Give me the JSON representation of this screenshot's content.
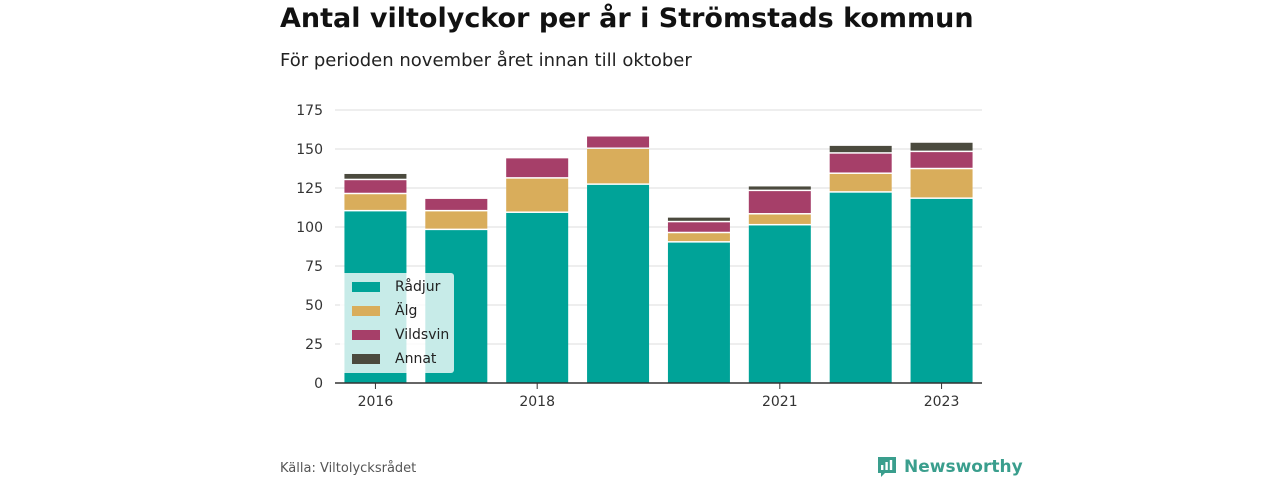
{
  "title": "Antal viltolyckor per år i Strömstads kommun",
  "subtitle": "För perioden november året innan till oktober",
  "source": "Källa: Viltolycksrådet",
  "brand": "Newsworthy",
  "colors": {
    "radjur": "#00a398",
    "alg": "#d9ad5b",
    "vildsvin": "#a63f69",
    "annat": "#4b4a3e",
    "grid": "#dddddd",
    "axis": "#333333",
    "brand": "#3a9e8d"
  },
  "chart_data": {
    "type": "bar",
    "stacked": true,
    "categories": [
      "2016",
      "2017",
      "2018",
      "2019",
      "2020",
      "2021",
      "2022",
      "2023"
    ],
    "tick_labels": [
      "2016",
      "2018",
      "2021",
      "2023"
    ],
    "y_ticks": [
      0,
      25,
      50,
      75,
      100,
      125,
      150,
      175
    ],
    "ylim": [
      0,
      175
    ],
    "legend_position": "bottom-left",
    "grid": true,
    "series": [
      {
        "name": "Rådjur",
        "color": "#00a398",
        "values": [
          110,
          98,
          109,
          127,
          90,
          101,
          122,
          118
        ]
      },
      {
        "name": "Älg",
        "color": "#d9ad5b",
        "values": [
          11,
          12,
          22,
          23,
          6,
          7,
          12,
          19
        ]
      },
      {
        "name": "Vildsvin",
        "color": "#a63f69",
        "values": [
          9,
          8,
          13,
          8,
          7,
          15,
          13,
          11
        ]
      },
      {
        "name": "Annat",
        "color": "#4b4a3e",
        "values": [
          4,
          0,
          0,
          0,
          3,
          3,
          5,
          6
        ]
      }
    ]
  }
}
